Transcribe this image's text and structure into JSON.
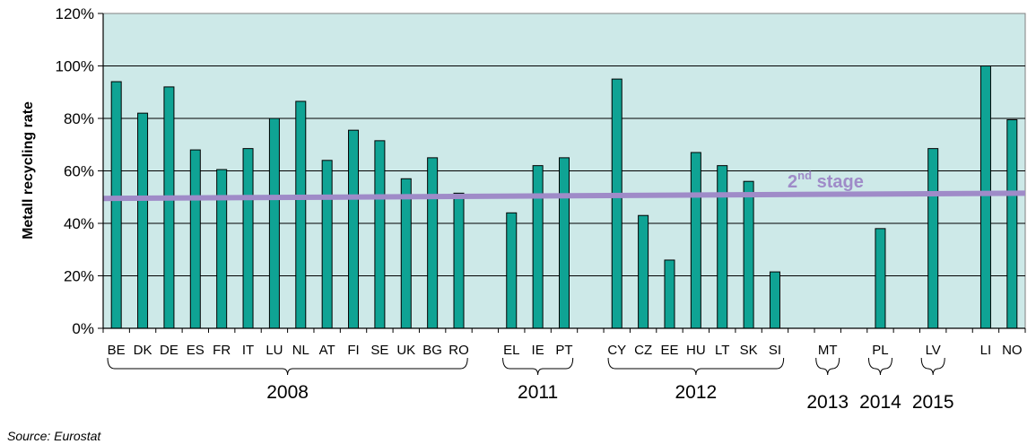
{
  "chart_data": {
    "type": "bar",
    "ylabel": "Metall recycling rate",
    "ylim": [
      0,
      120
    ],
    "yticks": [
      "0%",
      "20%",
      "40%",
      "60%",
      "80%",
      "100%",
      "120%"
    ],
    "grid": true,
    "colors": {
      "bar": "#0fa394",
      "plot_bg": "#cde9e8",
      "target_line": "#9f8bc8"
    },
    "slots": [
      {
        "label": "BE",
        "value": 94
      },
      {
        "label": "DK",
        "value": 82
      },
      {
        "label": "DE",
        "value": 92
      },
      {
        "label": "ES",
        "value": 68
      },
      {
        "label": "FR",
        "value": 60.5
      },
      {
        "label": "IT",
        "value": 68.5
      },
      {
        "label": "LU",
        "value": 80
      },
      {
        "label": "NL",
        "value": 86.5
      },
      {
        "label": "AT",
        "value": 64
      },
      {
        "label": "FI",
        "value": 75.5
      },
      {
        "label": "SE",
        "value": 71.5
      },
      {
        "label": "UK",
        "value": 57
      },
      {
        "label": "BG",
        "value": 65
      },
      {
        "label": "RO",
        "value": 51.5
      },
      {
        "label": "",
        "value": null
      },
      {
        "label": "EL",
        "value": 44
      },
      {
        "label": "IE",
        "value": 62
      },
      {
        "label": "PT",
        "value": 65
      },
      {
        "label": "",
        "value": null
      },
      {
        "label": "CY",
        "value": 95
      },
      {
        "label": "CZ",
        "value": 43
      },
      {
        "label": "EE",
        "value": 26
      },
      {
        "label": "HU",
        "value": 67
      },
      {
        "label": "LT",
        "value": 62
      },
      {
        "label": "SK",
        "value": 56
      },
      {
        "label": "SI",
        "value": 21.5
      },
      {
        "label": "",
        "value": null
      },
      {
        "label": "MT",
        "value": null
      },
      {
        "label": "",
        "value": null
      },
      {
        "label": "PL",
        "value": 38
      },
      {
        "label": "",
        "value": null
      },
      {
        "label": "LV",
        "value": 68.5
      },
      {
        "label": "",
        "value": null
      },
      {
        "label": "LI",
        "value": 100
      },
      {
        "label": "NO",
        "value": 79.5
      }
    ],
    "groups": [
      {
        "label": "2008",
        "from": "BE",
        "to": "RO"
      },
      {
        "label": "2011",
        "from": "EL",
        "to": "PT"
      },
      {
        "label": "2012",
        "from": "CY",
        "to": "SI"
      },
      {
        "label": "2013",
        "from": "MT",
        "to": "MT"
      },
      {
        "label": "2014",
        "from": "PL",
        "to": "PL"
      },
      {
        "label": "2015",
        "from": "LV",
        "to": "LV"
      }
    ],
    "target_line": {
      "label_main": "2",
      "label_sup": "nd",
      "label_rest": " stage",
      "start_value": 49.5,
      "end_value": 51.5
    }
  },
  "source": "Source: Eurostat"
}
